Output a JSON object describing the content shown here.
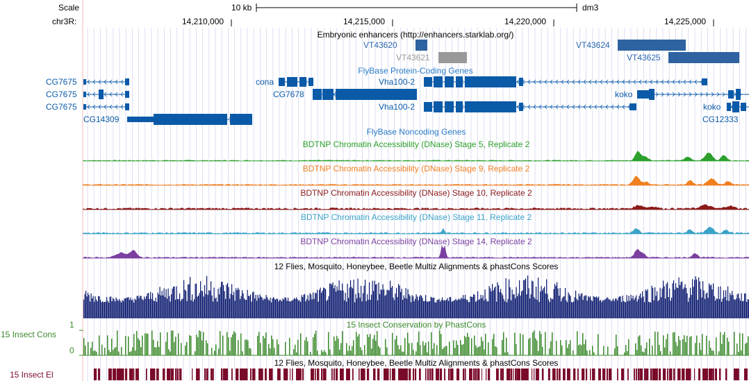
{
  "ruler": {
    "scale_label": "Scale",
    "chrom_label": "chr3R:",
    "scale_bar": "10 kb",
    "assembly": "dm3",
    "positions": [
      "14,210,000",
      "14,215,000",
      "14,220,000",
      "14,225,000"
    ]
  },
  "tracks": {
    "enhancers": {
      "title": "Embryonic enhancers (http://enhancers.starklab.org/)",
      "items": [
        "VT43620",
        "VT43621",
        "VT43624",
        "VT43625"
      ]
    },
    "flybase_genes": {
      "title": "FlyBase Protein-Coding Genes",
      "labels": [
        "CG7675",
        "CG7675",
        "CG7675",
        "CG14309",
        "cona",
        "CG7678",
        "Vha100-2",
        "Vha100-2",
        "koko",
        "koko",
        "CG12333"
      ]
    },
    "noncoding": {
      "title": "FlyBase Noncoding Genes"
    },
    "dnase5": {
      "title": "BDTNP Chromatin Accessibility (DNase) Stage 5, Replicate 2",
      "color": "#2ca02c"
    },
    "dnase9": {
      "title": "BDTNP Chromatin Accessibility (DNase) Stage 9, Replicate 2",
      "color": "#f07f20"
    },
    "dnase10": {
      "title": "BDTNP Chromatin Accessibility (DNase) Stage 10, Replicate 2",
      "color": "#8b1a1a"
    },
    "dnase11": {
      "title": "BDTNP Chromatin Accessibility (DNase) Stage 11, Replicate 2",
      "color": "#3ba3c8"
    },
    "dnase14": {
      "title": "BDTNP Chromatin Accessibility (DNase) Stage 14, Replicate 2",
      "color": "#7b3fa0"
    },
    "multiz": {
      "title": "12 Flies, Mosquito, Honeybee, Beetle Multiz Alignments & phastCons Scores",
      "color": "#0a1a6e"
    },
    "phastcons": {
      "title": "15 Insect Conservation by PhastCons",
      "side_label": "15 Insect Cons",
      "ymax": "1",
      "ymin": "0",
      "color": "#3a8a2a"
    },
    "elements": {
      "title": "12 Flies, Mosquito, Honeybee, Beetle Multiz Alignments & phastCons Scores",
      "side_label": "15 Insect El",
      "color": "#7a0a2a"
    }
  },
  "colors": {
    "gene": "#0a5aa8",
    "enhancer": "#2f62a0",
    "enhancer_gray": "#999999",
    "grid": "#d6d6f0",
    "link": "#2a66b0"
  }
}
